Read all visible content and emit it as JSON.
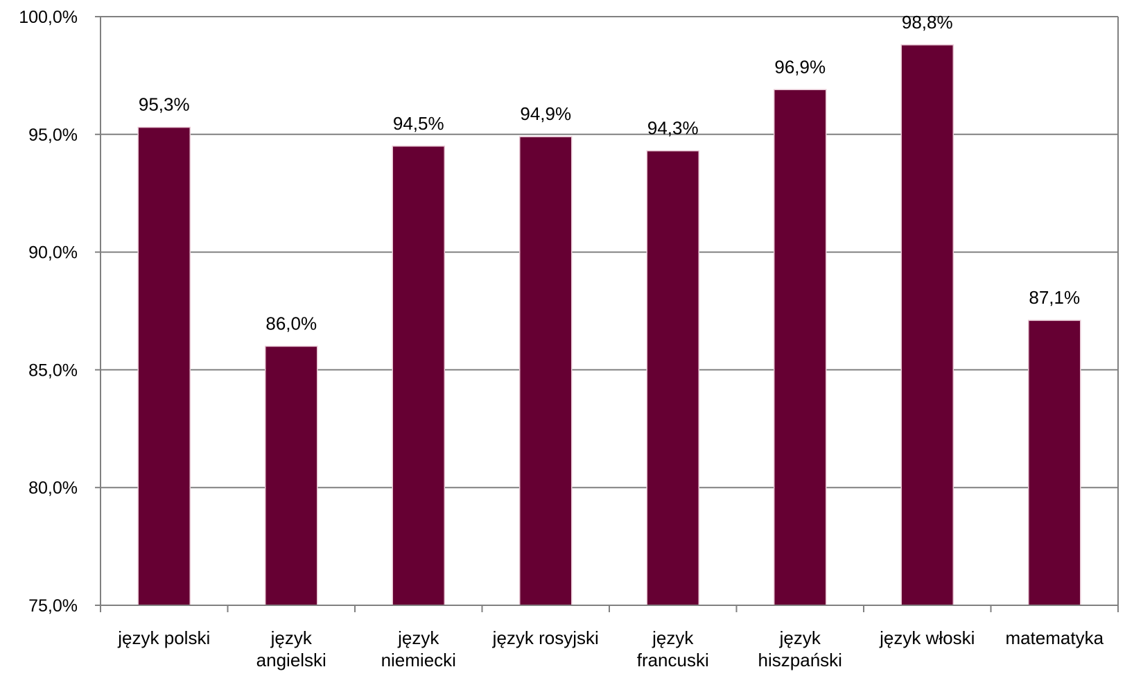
{
  "chart_data": {
    "type": "bar",
    "title": "",
    "xlabel": "",
    "ylabel": "",
    "categories": [
      [
        "język polski"
      ],
      [
        "język",
        "angielski"
      ],
      [
        "język",
        "niemiecki"
      ],
      [
        "język rosyjski"
      ],
      [
        "język",
        "francuski"
      ],
      [
        "język",
        "hiszpański"
      ],
      [
        "język włoski"
      ],
      [
        "matematyka"
      ]
    ],
    "values": [
      95.3,
      86.0,
      94.5,
      94.9,
      94.3,
      96.9,
      98.8,
      87.1
    ],
    "data_labels": [
      "95,3%",
      "86,0%",
      "94,5%",
      "94,9%",
      "94,3%",
      "96,9%",
      "98,8%",
      "87,1%"
    ],
    "ylim": [
      75,
      100
    ],
    "yticks": [
      75,
      80,
      85,
      90,
      95,
      100
    ],
    "ytick_labels": [
      "75,0%",
      "80,0%",
      "85,0%",
      "90,0%",
      "95,0%",
      "100,0%"
    ],
    "grid": true,
    "legend": "none",
    "colors": {
      "bar": "#660033",
      "bar_edge": "#e8c8d4",
      "grid": "#808080",
      "axis": "#808080"
    }
  }
}
